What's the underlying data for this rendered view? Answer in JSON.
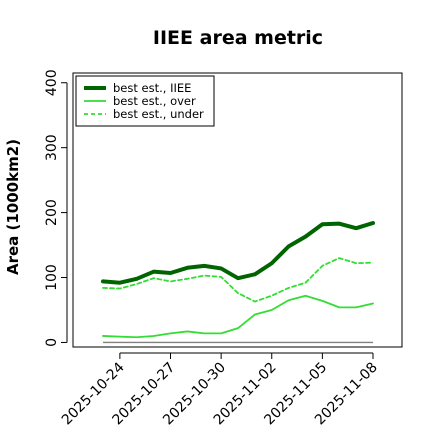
{
  "chart_data": {
    "type": "line",
    "title": "IIEE area metric",
    "xlabel": "",
    "ylabel": "Area (1000km2)",
    "ylim": [
      -7,
      415
    ],
    "yticks": [
      0,
      100,
      200,
      300,
      400
    ],
    "xticks": [
      "2025-10-24",
      "2025-10-27",
      "2025-10-30",
      "2025-11-02",
      "2025-11-05",
      "2025-11-08"
    ],
    "x": [
      "2025-10-23",
      "2025-10-24",
      "2025-10-25",
      "2025-10-26",
      "2025-10-27",
      "2025-10-28",
      "2025-10-29",
      "2025-10-30",
      "2025-10-31",
      "2025-11-01",
      "2025-11-02",
      "2025-11-03",
      "2025-11-04",
      "2025-11-05",
      "2025-11-06",
      "2025-11-07",
      "2025-11-08"
    ],
    "series": [
      {
        "name": "best est., IIEE",
        "color": "#006400",
        "style": "solid-thick",
        "values": [
          94,
          92,
          98,
          109,
          107,
          115,
          118,
          114,
          99,
          105,
          122,
          148,
          163,
          182,
          183,
          176,
          184
        ]
      },
      {
        "name": "best est., over",
        "color": "#33dd33",
        "style": "solid",
        "values": [
          10,
          9,
          8,
          10,
          14,
          17,
          14,
          14,
          22,
          43,
          50,
          65,
          72,
          64,
          54,
          54,
          60
        ]
      },
      {
        "name": "best est., under",
        "color": "#33dd33",
        "style": "dashed",
        "values": [
          84,
          83,
          90,
          99,
          94,
          98,
          103,
          101,
          76,
          63,
          72,
          84,
          92,
          118,
          130,
          122,
          123
        ]
      }
    ],
    "baseline": 0,
    "baseline_color": "#808080",
    "legend_position": "top-left",
    "grid": false
  }
}
